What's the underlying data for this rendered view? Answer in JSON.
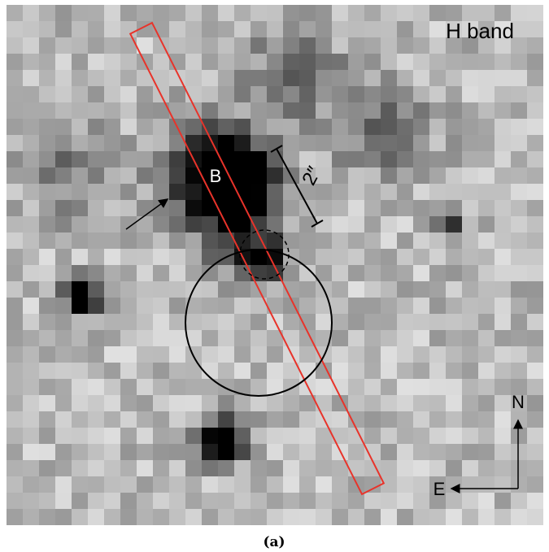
{
  "image": {
    "band_label": "H band",
    "source_label": "B",
    "scale_label": "2″",
    "north_label": "N",
    "east_label": "E"
  },
  "caption": "(a)"
}
